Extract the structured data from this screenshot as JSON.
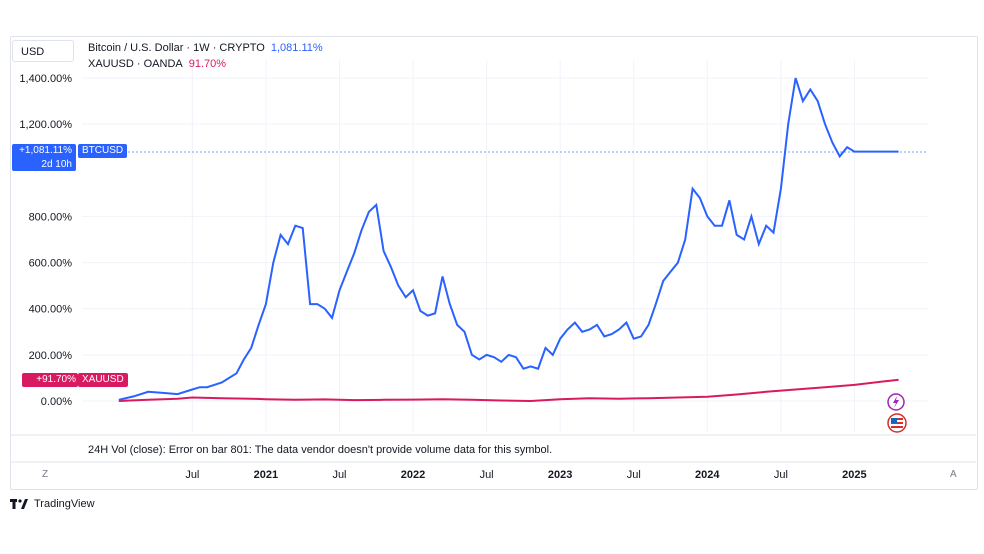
{
  "header": {
    "currency": "USD",
    "btc_label": "Bitcoin / U.S. Dollar · 1W · CRYPTO",
    "btc_value": "1,081.11%",
    "xau_label": "XAUUSD · OANDA",
    "xau_value": "91.70%"
  },
  "tags": {
    "btc_tag_value": "+1,081.11%",
    "btc_tag_name": "BTCUSD",
    "btc_tag_time": "2d 10h",
    "xau_tag_value": "+91.70%",
    "xau_tag_name": "XAUUSD"
  },
  "volume_message": "24H Vol (close): Error on bar 801: The data vendor doesn't provide volume data for this symbol.",
  "axis_buttons": {
    "left": "Z",
    "right": "A"
  },
  "brand": "TradingView",
  "colors": {
    "btc": "#2962ff",
    "xau": "#d81b60"
  },
  "chart_data": {
    "type": "line",
    "y_unit": "%",
    "ylim": [
      -80,
      1500
    ],
    "y_ticks": [
      "1,400.00%",
      "1,200.00%",
      "800.00%",
      "600.00%",
      "400.00%",
      "200.00%",
      "0.00%"
    ],
    "y_tick_values": [
      1400,
      1200,
      800,
      600,
      400,
      200,
      0
    ],
    "x_ticks": [
      {
        "label": "Jul",
        "x": 2020.5,
        "year": false
      },
      {
        "label": "2021",
        "x": 2021.0,
        "year": true
      },
      {
        "label": "Jul",
        "x": 2021.5,
        "year": false
      },
      {
        "label": "2022",
        "x": 2022.0,
        "year": true
      },
      {
        "label": "Jul",
        "x": 2022.5,
        "year": false
      },
      {
        "label": "2023",
        "x": 2023.0,
        "year": true
      },
      {
        "label": "Jul",
        "x": 2023.5,
        "year": false
      },
      {
        "label": "2024",
        "x": 2024.0,
        "year": true
      },
      {
        "label": "Jul",
        "x": 2024.5,
        "year": false
      },
      {
        "label": "2025",
        "x": 2025.0,
        "year": true
      }
    ],
    "xlim": [
      2019.75,
      2025.5
    ],
    "grid": true,
    "series": [
      {
        "name": "BTCUSD",
        "x": [
          2020.0,
          2020.1,
          2020.2,
          2020.3,
          2020.4,
          2020.5,
          2020.55,
          2020.6,
          2020.7,
          2020.8,
          2020.85,
          2020.9,
          2020.95,
          2021.0,
          2021.05,
          2021.1,
          2021.15,
          2021.2,
          2021.25,
          2021.3,
          2021.35,
          2021.4,
          2021.45,
          2021.5,
          2021.55,
          2021.6,
          2021.65,
          2021.7,
          2021.75,
          2021.8,
          2021.85,
          2021.9,
          2021.95,
          2022.0,
          2022.05,
          2022.1,
          2022.15,
          2022.2,
          2022.25,
          2022.3,
          2022.35,
          2022.4,
          2022.45,
          2022.5,
          2022.55,
          2022.6,
          2022.65,
          2022.7,
          2022.75,
          2022.8,
          2022.85,
          2022.9,
          2022.95,
          2023.0,
          2023.05,
          2023.1,
          2023.15,
          2023.2,
          2023.25,
          2023.3,
          2023.35,
          2023.4,
          2023.45,
          2023.5,
          2023.55,
          2023.6,
          2023.65,
          2023.7,
          2023.75,
          2023.8,
          2023.85,
          2023.9,
          2023.95,
          2024.0,
          2024.05,
          2024.1,
          2024.15,
          2024.2,
          2024.25,
          2024.3,
          2024.35,
          2024.4,
          2024.45,
          2024.5,
          2024.55,
          2024.6,
          2024.65,
          2024.7,
          2024.75,
          2024.8,
          2024.85,
          2024.9,
          2024.95,
          2025.0,
          2025.05,
          2025.1,
          2025.15,
          2025.2,
          2025.25,
          2025.3
        ],
        "y": [
          5,
          20,
          40,
          35,
          30,
          50,
          60,
          60,
          80,
          120,
          180,
          230,
          330,
          420,
          600,
          720,
          680,
          760,
          750,
          420,
          420,
          400,
          360,
          480,
          560,
          640,
          740,
          820,
          850,
          650,
          580,
          500,
          450,
          480,
          390,
          370,
          380,
          540,
          420,
          330,
          300,
          200,
          180,
          200,
          190,
          170,
          200,
          190,
          140,
          150,
          140,
          230,
          200,
          270,
          310,
          340,
          300,
          310,
          330,
          280,
          290,
          310,
          340,
          270,
          280,
          330,
          420,
          520,
          560,
          600,
          700,
          920,
          880,
          800,
          760,
          760,
          870,
          720,
          700,
          800,
          680,
          760,
          730,
          920,
          1200,
          1400,
          1300,
          1350,
          1300,
          1200,
          1120,
          1060,
          1100,
          1081,
          1081,
          1081,
          1081,
          1081,
          1081,
          1081
        ]
      },
      {
        "name": "XAUUSD",
        "x": [
          2020.0,
          2020.2,
          2020.4,
          2020.5,
          2020.7,
          2020.9,
          2021.0,
          2021.2,
          2021.4,
          2021.6,
          2021.8,
          2022.0,
          2022.2,
          2022.4,
          2022.6,
          2022.8,
          2023.0,
          2023.2,
          2023.4,
          2023.6,
          2023.8,
          2024.0,
          2024.2,
          2024.4,
          2024.6,
          2024.8,
          2025.0,
          2025.2,
          2025.3
        ],
        "y": [
          0,
          5,
          10,
          15,
          12,
          10,
          8,
          5,
          7,
          4,
          5,
          6,
          8,
          5,
          2,
          0,
          8,
          12,
          10,
          12,
          15,
          18,
          28,
          40,
          50,
          60,
          70,
          85,
          91.7
        ]
      }
    ]
  }
}
